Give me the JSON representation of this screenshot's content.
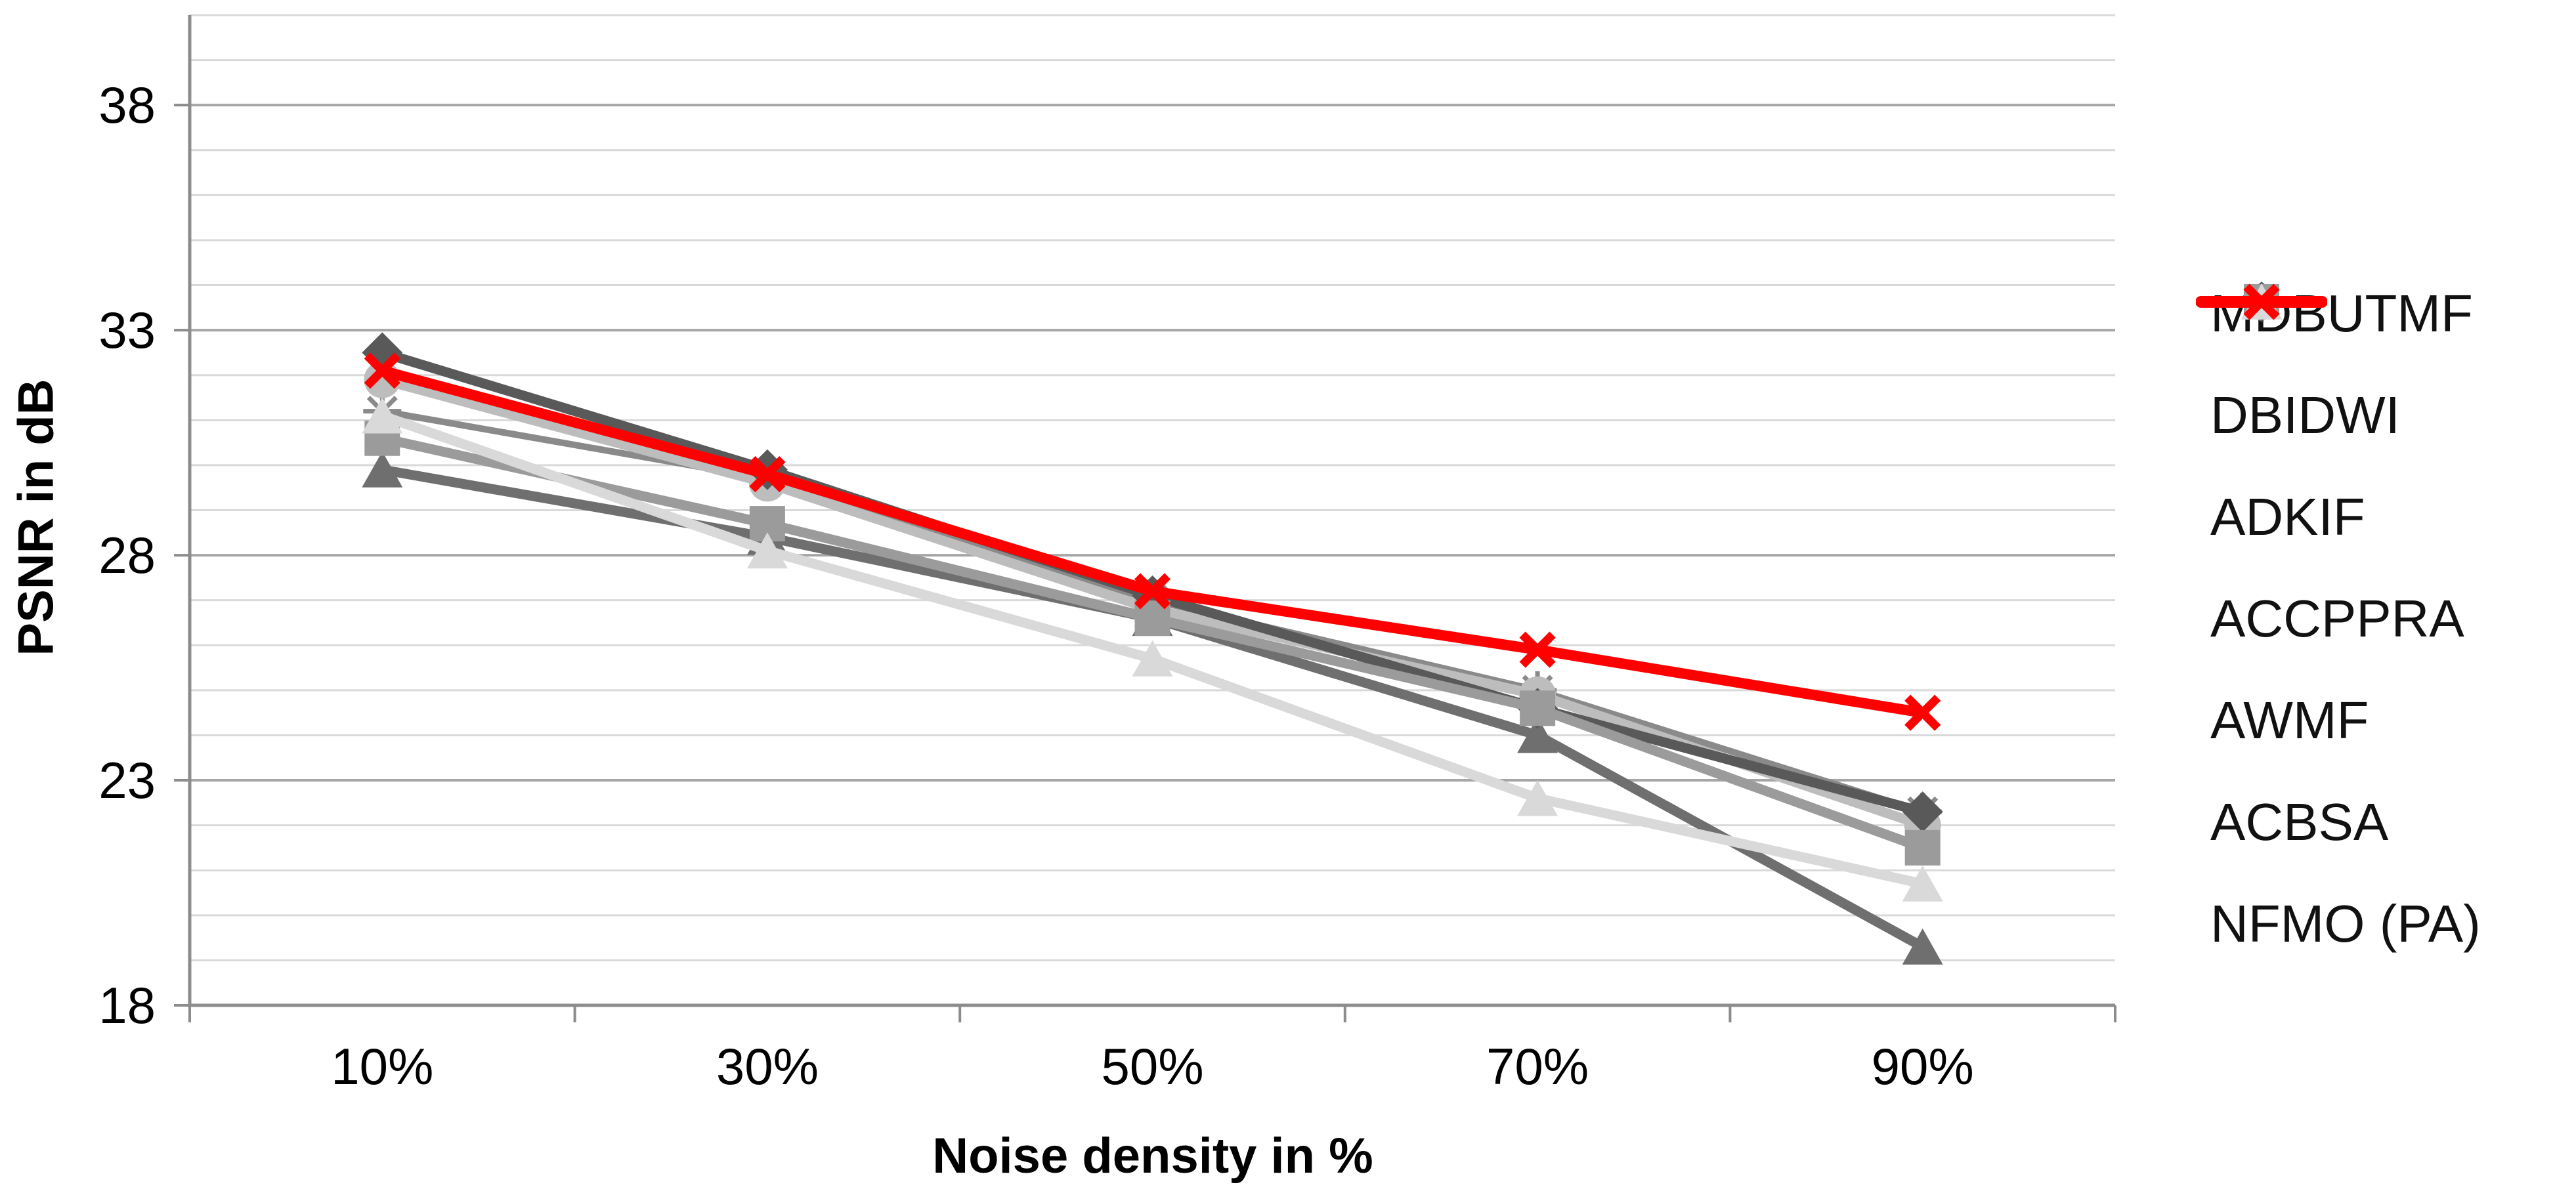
{
  "figure": {
    "background": "#ffffff"
  },
  "chart_data": {
    "type": "line",
    "title": "",
    "xlabel": "Noise density in %",
    "ylabel": "PSNR in dB",
    "categories": [
      "10%",
      "30%",
      "50%",
      "70%",
      "90%"
    ],
    "y_axis": {
      "min": 18,
      "max": 40,
      "major_tick": 5,
      "minor_tick": 1,
      "major_labels": [
        "18",
        "23",
        "28",
        "33",
        "38"
      ]
    },
    "grid": {
      "show": true,
      "minor_color": "#D9D9D9",
      "major_color": "#A6A6A6",
      "axis_color": "#8C8C8C"
    },
    "legend_position": "right",
    "series": [
      {
        "name": "MDBUTMF",
        "color": "#6F6F6F",
        "marker": "triangle",
        "line_width": 15,
        "values": [
          29.9,
          28.4,
          26.6,
          24.0,
          19.3
        ]
      },
      {
        "name": "DBIDWI",
        "color": "#8A8A8A",
        "marker": "asterisk",
        "line_width": 10,
        "values": [
          31.2,
          29.7,
          27.0,
          25.0,
          22.3
        ]
      },
      {
        "name": "ADKIF",
        "color": "#BDBDBD",
        "marker": "circle",
        "line_width": 15,
        "values": [
          31.9,
          29.6,
          26.8,
          24.9,
          22.0
        ]
      },
      {
        "name": "ACCPPRA",
        "color": "#595959",
        "marker": "diamond",
        "line_width": 15,
        "values": [
          32.5,
          29.9,
          27.1,
          24.6,
          22.3
        ]
      },
      {
        "name": "AWMF",
        "color": "#9B9B9B",
        "marker": "square",
        "line_width": 15,
        "values": [
          30.6,
          28.7,
          26.6,
          24.6,
          21.5
        ]
      },
      {
        "name": "ACBSA",
        "color": "#D9D9D9",
        "marker": "triangle",
        "line_width": 15,
        "values": [
          31.1,
          28.1,
          25.7,
          22.6,
          20.7
        ]
      },
      {
        "name": "NFMO (PA)",
        "color": "#FF0000",
        "marker": "x",
        "line_width": 16,
        "values": [
          32.1,
          29.8,
          27.2,
          25.9,
          24.5
        ]
      }
    ]
  }
}
